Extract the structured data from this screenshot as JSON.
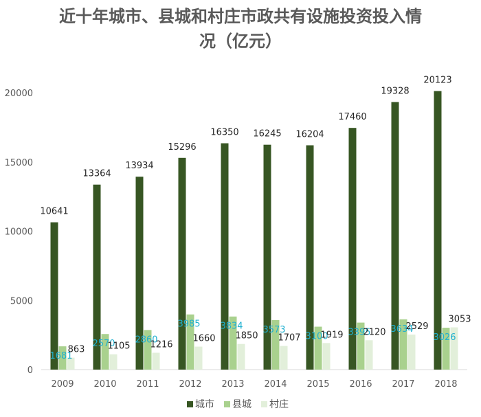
{
  "chart_data": {
    "type": "bar",
    "title_line1": "近十年城市、县城和村庄市政共有设施投资投入情",
    "title_line2": "况（亿元）",
    "categories": [
      "2009",
      "2010",
      "2011",
      "2012",
      "2013",
      "2014",
      "2015",
      "2016",
      "2017",
      "2018"
    ],
    "series": [
      {
        "name": "城市",
        "color": "#375623",
        "label_color": "#262626",
        "values": [
          10641,
          13364,
          13934,
          15296,
          16350,
          16245,
          16204,
          17460,
          19328,
          20123
        ]
      },
      {
        "name": "县城",
        "color": "#a9d18e",
        "label_color": "#1fb0d0",
        "values": [
          1681,
          2570,
          2860,
          3985,
          3834,
          3573,
          3100,
          3395,
          3634,
          3026
        ]
      },
      {
        "name": "村庄",
        "color": "#e2efda",
        "label_color": "#262626",
        "values": [
          863,
          1105,
          1216,
          1660,
          1850,
          1707,
          1919,
          2120,
          2529,
          3053
        ]
      }
    ],
    "ylim": [
      0,
      20000
    ],
    "yticks": [
      "0",
      "5000",
      "10000",
      "15000",
      "20000"
    ],
    "legend": "bottom",
    "grid": false
  }
}
